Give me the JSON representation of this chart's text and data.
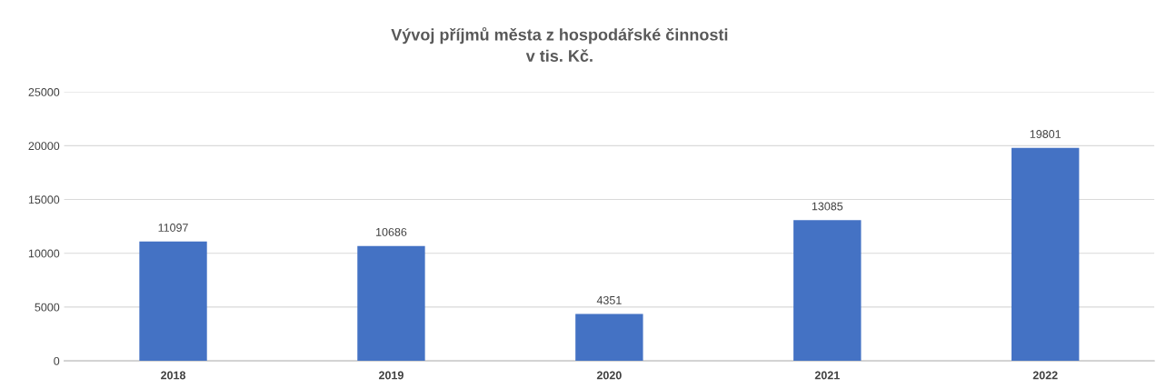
{
  "chart_data": {
    "type": "bar",
    "title": "Vývoj příjmů města z hospodářské činnosti\nv tis. Kč.",
    "categories": [
      "2018",
      "2019",
      "2020",
      "2021",
      "2022"
    ],
    "values": [
      11097,
      10686,
      4351,
      13085,
      19801
    ],
    "color": "#4472c4",
    "ylim": [
      0,
      25000
    ],
    "yticks": [
      0,
      5000,
      10000,
      15000,
      20000,
      25000
    ],
    "grid": "y",
    "data_labels": true
  }
}
